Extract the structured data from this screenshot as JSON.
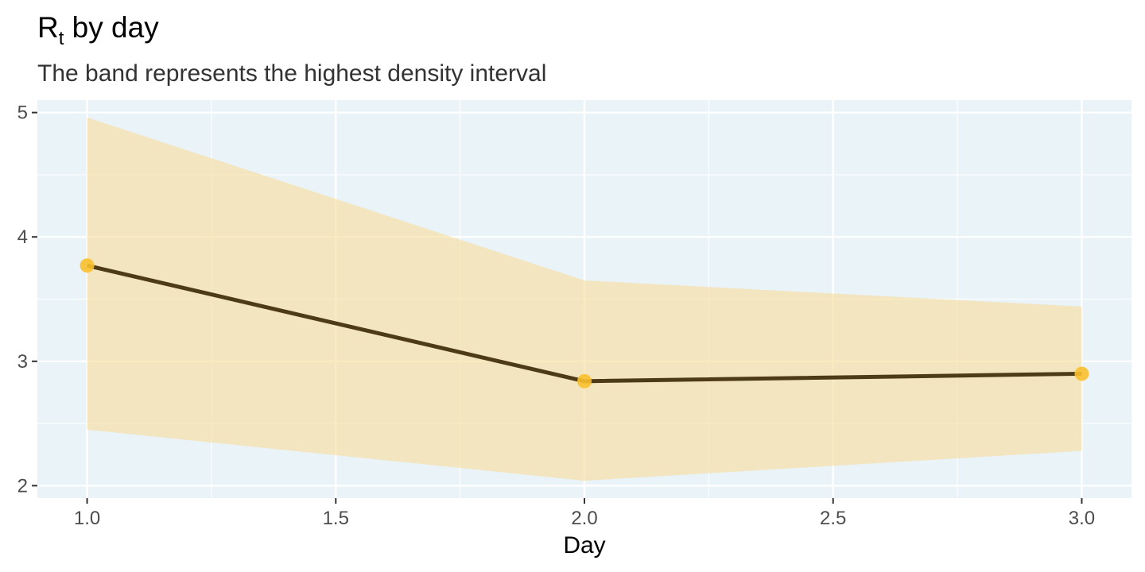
{
  "chart_data": {
    "type": "line",
    "title_main": "R",
    "title_sub": "t",
    "title_rest": " by day",
    "subtitle": "The band represents the highest density interval",
    "xlabel": "Day",
    "ylabel": "",
    "xlim": [
      0.9,
      3.1
    ],
    "ylim": [
      1.9,
      5.1
    ],
    "x_ticks": [
      1.0,
      1.5,
      2.0,
      2.5,
      3.0
    ],
    "x_tick_labels": [
      "1.0",
      "1.5",
      "2.0",
      "2.5",
      "3.0"
    ],
    "x_minor": [
      1.25,
      1.75,
      2.25,
      2.75
    ],
    "y_ticks": [
      2,
      3,
      4,
      5
    ],
    "y_tick_labels": [
      "2",
      "3",
      "4",
      "5"
    ],
    "y_minor": [
      2.5,
      3.5,
      4.5
    ],
    "grid": true,
    "x": [
      1.0,
      2.0,
      3.0
    ],
    "series": [
      {
        "values": [
          3.77,
          2.84,
          2.9
        ]
      }
    ],
    "band": {
      "lower": [
        2.45,
        2.04,
        2.28
      ],
      "upper": [
        4.96,
        3.65,
        3.44
      ]
    },
    "colors": {
      "panel": "#eaf3f7",
      "grid": "#ffffff",
      "band": "#f7dc9a",
      "line": "#4d3b17",
      "points": "#f9c02e",
      "tick_mark": "#333333"
    }
  }
}
